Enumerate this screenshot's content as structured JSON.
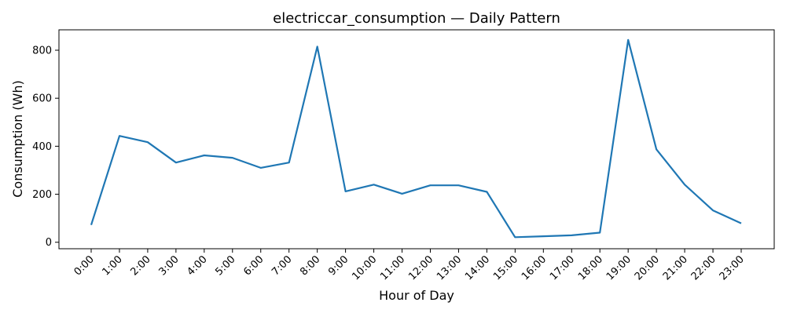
{
  "chart_data": {
    "type": "line",
    "title": "electriccar_consumption — Daily Pattern",
    "xlabel": "Hour of Day",
    "ylabel": "Consumption (Wh)",
    "categories": [
      "0:00",
      "1:00",
      "2:00",
      "3:00",
      "4:00",
      "5:00",
      "6:00",
      "7:00",
      "8:00",
      "9:00",
      "10:00",
      "11:00",
      "12:00",
      "13:00",
      "14:00",
      "15:00",
      "16:00",
      "17:00",
      "18:00",
      "19:00",
      "20:00",
      "21:00",
      "22:00",
      "23:00"
    ],
    "series": [
      {
        "values": [
          72,
          443,
          417,
          332,
          362,
          352,
          310,
          332,
          815,
          212,
          240,
          202,
          237,
          237,
          210,
          21,
          25,
          29,
          40,
          843,
          387,
          240,
          133,
          79
        ]
      }
    ],
    "ylim": [
      -27,
      885
    ],
    "yticks": [
      0,
      200,
      400,
      600,
      800
    ],
    "grid": false,
    "legend": "none",
    "colors": {
      "line": "#1f77b4"
    }
  }
}
